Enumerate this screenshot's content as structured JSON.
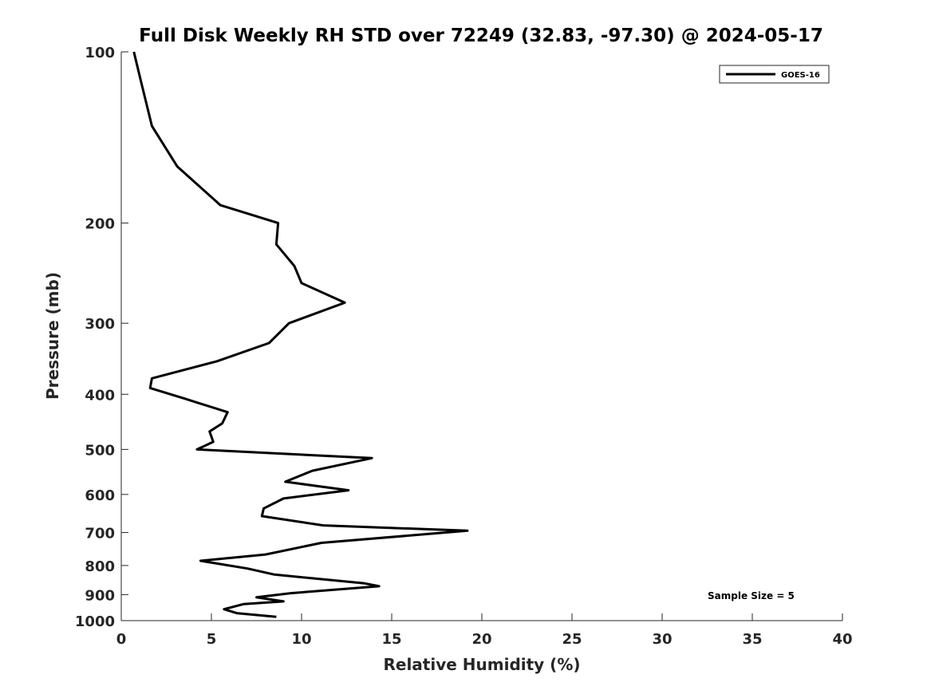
{
  "chart_data": {
    "type": "line",
    "title": "Full Disk Weekly RH STD over 72249 (32.83, -97.30) @ 2024-05-17",
    "xlabel": "Relative Humidity (%)",
    "ylabel": "Pressure (mb)",
    "xlim": [
      0,
      40
    ],
    "ylim": [
      100,
      1000
    ],
    "yscale": "log",
    "y_reversed": true,
    "xticks": [
      0,
      5,
      10,
      15,
      20,
      25,
      30,
      35,
      40
    ],
    "yticks": [
      100,
      200,
      300,
      400,
      500,
      600,
      700,
      800,
      900,
      1000
    ],
    "grid": false,
    "legend_position": "top-right",
    "annotation": "Sample Size = 5",
    "series": [
      {
        "name": "GOES-16",
        "color": "#000000",
        "x": [
          0.7,
          1.1,
          1.7,
          3.1,
          5.5,
          8.7,
          8.6,
          9.6,
          10.0,
          12.4,
          9.3,
          8.2,
          5.3,
          1.7,
          1.6,
          3.5,
          5.9,
          5.6,
          4.9,
          5.1,
          4.2,
          13.9,
          10.6,
          9.1,
          12.6,
          9.0,
          7.9,
          7.8,
          11.2,
          19.2,
          11.1,
          8.0,
          4.4,
          7.0,
          8.5,
          13.5,
          14.3,
          9.4,
          7.5,
          9.0,
          6.8,
          5.7,
          6.4,
          8.6
        ],
        "y": [
          100,
          113,
          135,
          159,
          186,
          200,
          218,
          238,
          255,
          276,
          300,
          325,
          350,
          375,
          390,
          407,
          430,
          450,
          465,
          485,
          500,
          518,
          545,
          570,
          590,
          610,
          635,
          655,
          680,
          695,
          730,
          765,
          785,
          810,
          830,
          860,
          870,
          895,
          910,
          925,
          935,
          955,
          970,
          985
        ]
      }
    ]
  }
}
